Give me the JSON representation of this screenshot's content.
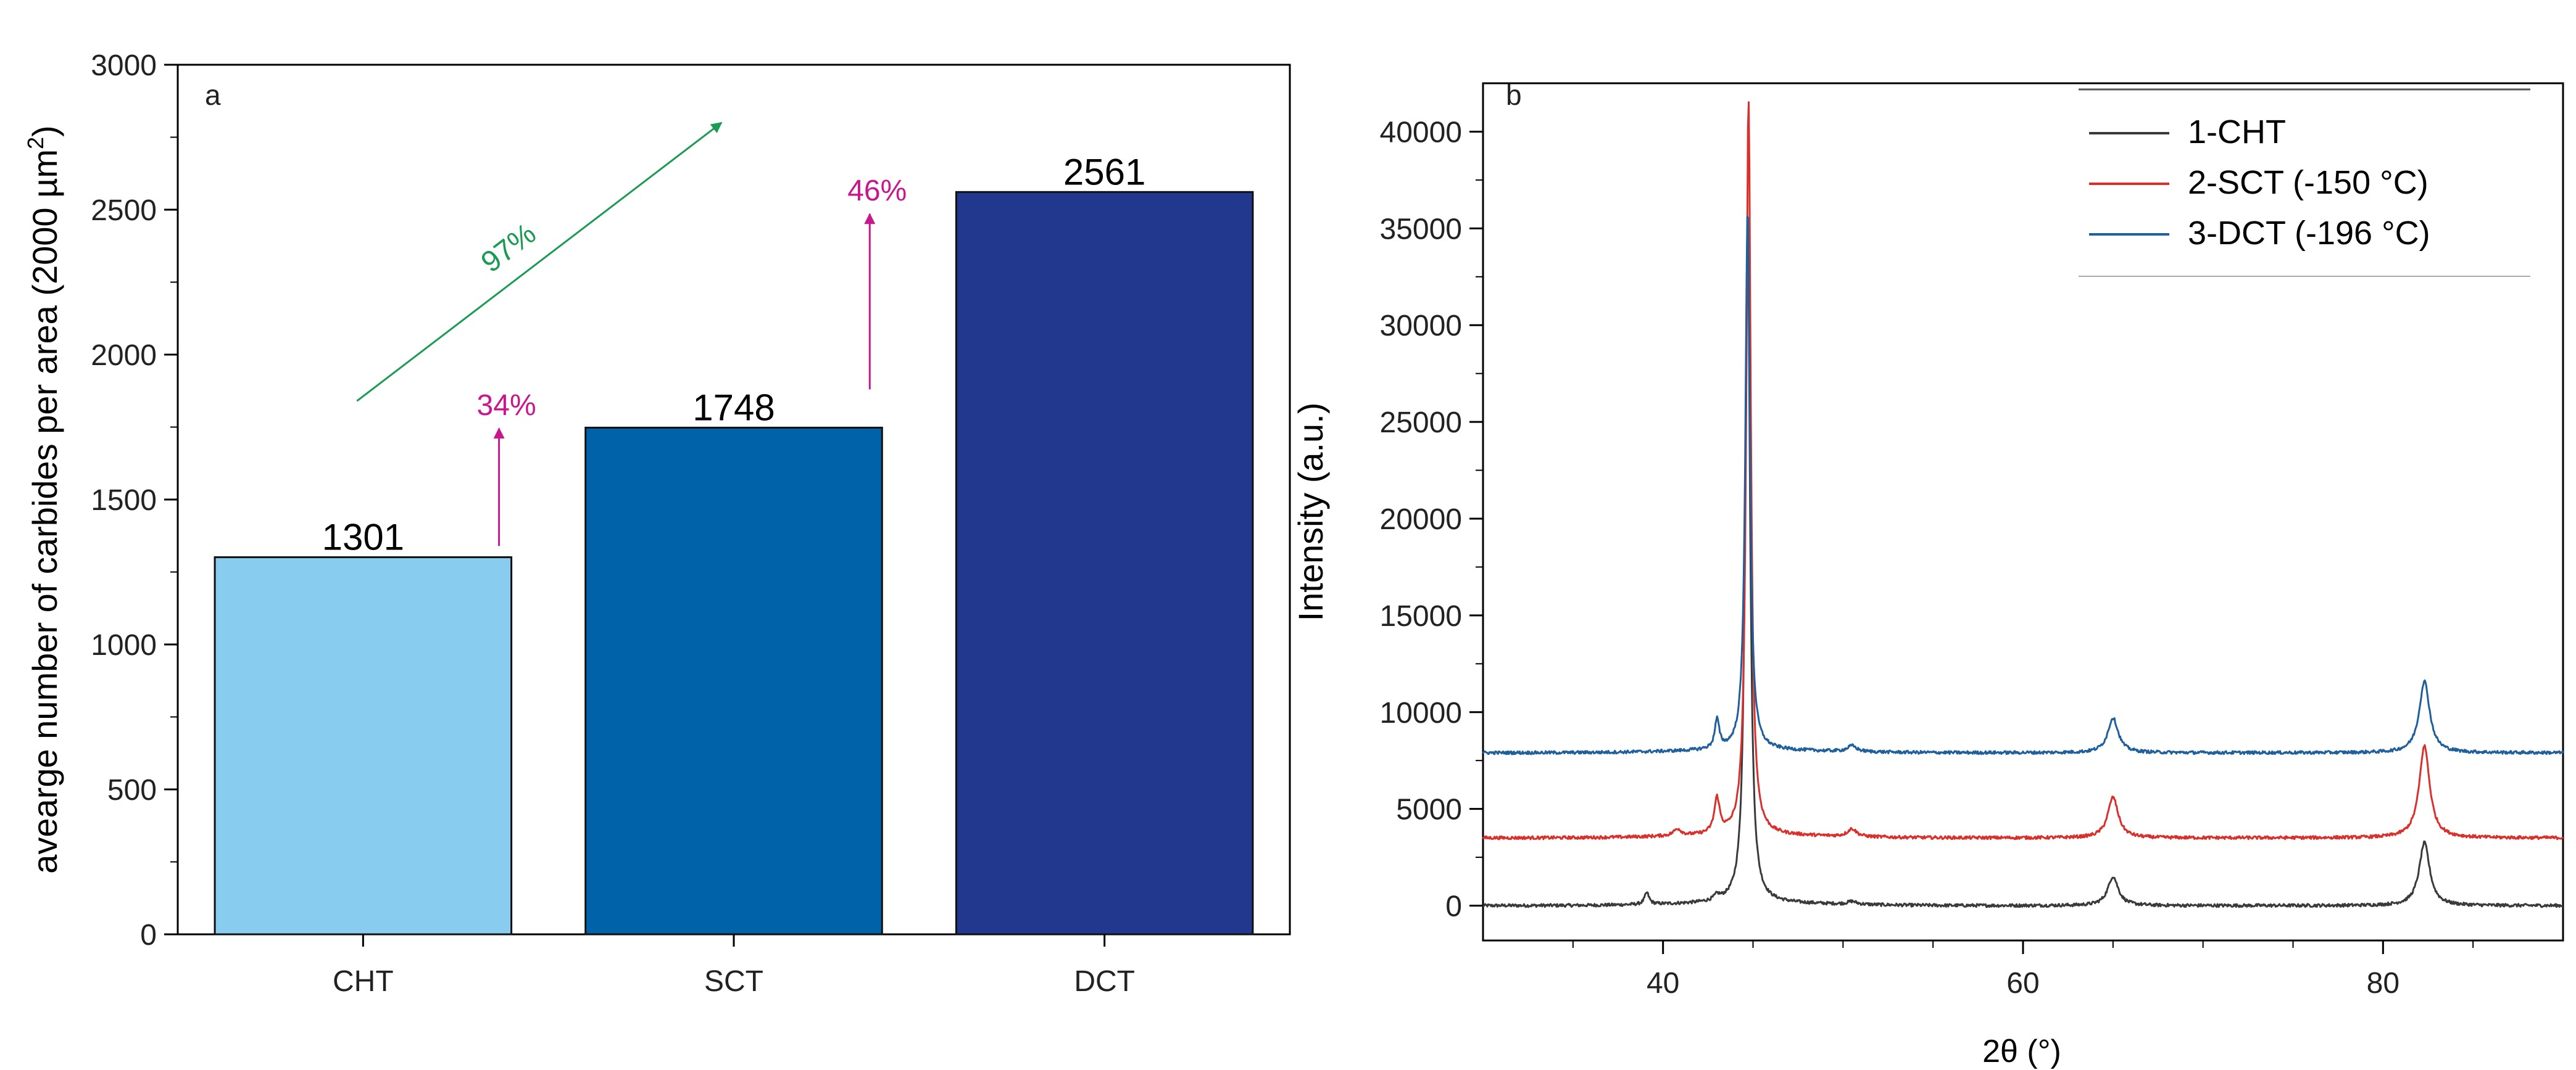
{
  "chart_data": [
    {
      "type": "bar",
      "panel_label": "a",
      "categories": [
        "CHT",
        "SCT",
        "DCT"
      ],
      "values": [
        1301,
        1748,
        2561
      ],
      "value_labels": [
        "1301",
        "1748",
        "2561"
      ],
      "colors": [
        "#88ccf0",
        "#0062a8",
        "#22388f"
      ],
      "ylabel_main": "avearge number of carbides per area (2000 µm",
      "ylabel_sup": "2",
      "ylabel_close": ")",
      "xlabel": "",
      "ylim": [
        0,
        3000
      ],
      "yticks": [
        0,
        500,
        1000,
        1500,
        2000,
        2500,
        3000
      ],
      "ytick_labels": [
        "0",
        "500",
        "1000",
        "1500",
        "2000",
        "2500",
        "3000"
      ],
      "minor_ytick_step": 250,
      "annotations": [
        {
          "text": "34%",
          "color": "#c7188e",
          "from_category": 0,
          "from_value": 1340,
          "to_value": 1745
        },
        {
          "text": "46%",
          "color": "#c7188e",
          "from_category": 1,
          "from_value": 1880,
          "to_value": 2485
        },
        {
          "text": "97%",
          "color": "#1a9a53",
          "from_category": 0,
          "from_value": 1840,
          "to_category": 1,
          "to_value": 2800
        }
      ]
    },
    {
      "type": "line",
      "panel_label": "b",
      "xlabel": "2θ (°)",
      "ylabel": "Intensity (a.u.)",
      "xlim": [
        30,
        90
      ],
      "ylim": [
        -1800,
        42500
      ],
      "xticks": [
        40,
        60,
        80
      ],
      "xtick_labels": [
        "40",
        "60",
        "80"
      ],
      "minor_xtick_step": 5,
      "yticks": [
        0,
        5000,
        10000,
        15000,
        20000,
        25000,
        30000,
        35000,
        40000
      ],
      "ytick_labels": [
        "0",
        "5000",
        "10000",
        "15000",
        "20000",
        "25000",
        "30000",
        "35000",
        "40000"
      ],
      "minor_ytick_step": 2500,
      "legend_position": "top-right",
      "series": [
        {
          "name": "1-CHT",
          "color": "#3a3a3a",
          "baseline": 0,
          "peaks": [
            [
              39.1,
              600,
              0.15
            ],
            [
              43.0,
              250,
              0.2
            ],
            [
              44.7,
              35500,
              0.16
            ],
            [
              50.5,
              150,
              0.3
            ],
            [
              65.0,
              1500,
              0.35
            ],
            [
              82.3,
              3250,
              0.35
            ]
          ]
        },
        {
          "name": "2-SCT (-150 °C)",
          "color": "#d9302c",
          "baseline": 3500,
          "peaks": [
            [
              40.8,
              350,
              0.25
            ],
            [
              43.0,
              1800,
              0.18
            ],
            [
              44.75,
              38000,
              0.15
            ],
            [
              50.5,
              400,
              0.3
            ],
            [
              65.0,
              2100,
              0.35
            ],
            [
              82.3,
              4750,
              0.35
            ]
          ]
        },
        {
          "name": "3-DCT (-196 °C)",
          "color": "#1f5f9c",
          "baseline": 7900,
          "peaks": [
            [
              43.0,
              1500,
              0.15
            ],
            [
              44.7,
              28000,
              0.15
            ],
            [
              50.5,
              300,
              0.3
            ],
            [
              65.0,
              1800,
              0.35
            ],
            [
              82.3,
              3700,
              0.35
            ]
          ]
        }
      ]
    }
  ]
}
